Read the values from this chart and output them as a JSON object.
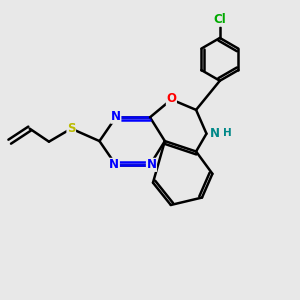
{
  "bg_color": "#e8e8e8",
  "bond_color": "#000000",
  "bond_width": 1.8,
  "atom_colors": {
    "N": "#0000ff",
    "O": "#ff0000",
    "S": "#bbbb00",
    "Cl": "#00aa00",
    "NH": "#008888"
  },
  "font_size": 8.5,
  "fig_size": [
    3.0,
    3.0
  ],
  "dpi": 100
}
